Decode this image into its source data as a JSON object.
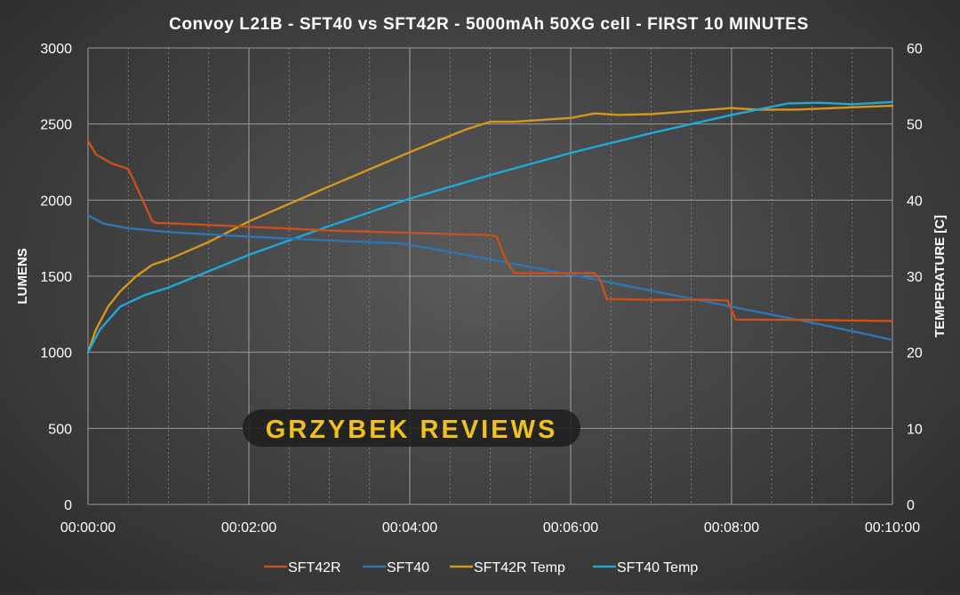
{
  "chart_data": {
    "type": "line",
    "title": "Convoy L21B - SFT40 vs SFT42R - 5000mAh 50XG cell - FIRST 10 MINUTES",
    "watermark": "GRZYBEK REVIEWS",
    "xlabel": "",
    "ylabel": "LUMENS",
    "y2label": "TEMPERATURE [C]",
    "x_unit": "minutes",
    "xlim": [
      0,
      10
    ],
    "ylim": [
      0,
      3000
    ],
    "y2lim": [
      0,
      60
    ],
    "x_ticks": [
      0,
      2,
      4,
      6,
      8,
      10
    ],
    "x_tick_labels": [
      "00:00:00",
      "00:02:00",
      "00:04:00",
      "00:06:00",
      "00:08:00",
      "00:10:00"
    ],
    "y_ticks": [
      0,
      500,
      1000,
      1500,
      2000,
      2500,
      3000
    ],
    "y2_ticks": [
      0,
      10,
      20,
      30,
      40,
      50,
      60
    ],
    "x_minor_ticks": [
      0.5,
      1,
      1.5,
      2.5,
      3,
      3.5,
      4.5,
      5,
      5.5,
      6.5,
      7,
      7.5,
      8.5,
      9,
      9.5
    ],
    "grid": true,
    "legend_position": "bottom",
    "series": [
      {
        "name": "SFT42R",
        "axis": "left",
        "color": "#c8511d",
        "points": [
          [
            0,
            2390
          ],
          [
            0.1,
            2300
          ],
          [
            0.3,
            2240
          ],
          [
            0.5,
            2205
          ],
          [
            0.55,
            2150
          ],
          [
            0.8,
            1860
          ],
          [
            0.85,
            1850
          ],
          [
            1.0,
            1848
          ],
          [
            2.0,
            1825
          ],
          [
            3.0,
            1800
          ],
          [
            4.0,
            1785
          ],
          [
            4.6,
            1775
          ],
          [
            5.0,
            1770
          ],
          [
            5.08,
            1760
          ],
          [
            5.2,
            1600
          ],
          [
            5.3,
            1520
          ],
          [
            6.0,
            1520
          ],
          [
            6.3,
            1520
          ],
          [
            6.37,
            1470
          ],
          [
            6.45,
            1350
          ],
          [
            7.0,
            1345
          ],
          [
            7.7,
            1345
          ],
          [
            7.95,
            1340
          ],
          [
            8.05,
            1215
          ],
          [
            9.0,
            1212
          ],
          [
            10.0,
            1205
          ]
        ]
      },
      {
        "name": "SFT40",
        "axis": "left",
        "color": "#2e75b6",
        "points": [
          [
            0,
            1900
          ],
          [
            0.2,
            1845
          ],
          [
            0.5,
            1815
          ],
          [
            1,
            1790
          ],
          [
            2,
            1760
          ],
          [
            3,
            1735
          ],
          [
            3.9,
            1715
          ],
          [
            4.5,
            1660
          ],
          [
            5,
            1610
          ],
          [
            6,
            1510
          ],
          [
            7,
            1405
          ],
          [
            8,
            1300
          ],
          [
            9,
            1195
          ],
          [
            9.8,
            1105
          ],
          [
            10,
            1080
          ]
        ]
      },
      {
        "name": "SFT42R Temp",
        "axis": "right",
        "color": "#d4961e",
        "points": [
          [
            0,
            20
          ],
          [
            0.1,
            23
          ],
          [
            0.25,
            26
          ],
          [
            0.4,
            28
          ],
          [
            0.6,
            30
          ],
          [
            0.8,
            31.5
          ],
          [
            1,
            32.2
          ],
          [
            1.5,
            34.5
          ],
          [
            2,
            37.2
          ],
          [
            3,
            41.8
          ],
          [
            4,
            46.3
          ],
          [
            4.7,
            49.3
          ],
          [
            5,
            50.3
          ],
          [
            5.3,
            50.3
          ],
          [
            6,
            50.8
          ],
          [
            6.3,
            51.4
          ],
          [
            6.6,
            51.2
          ],
          [
            7,
            51.3
          ],
          [
            7.5,
            51.7
          ],
          [
            8,
            52.1
          ],
          [
            8.3,
            51.9
          ],
          [
            8.8,
            51.9
          ],
          [
            9.5,
            52.2
          ],
          [
            10,
            52.4
          ]
        ]
      },
      {
        "name": "SFT40 Temp",
        "axis": "right",
        "color": "#1fa8d8",
        "points": [
          [
            0,
            20
          ],
          [
            0.15,
            23
          ],
          [
            0.4,
            26
          ],
          [
            0.7,
            27.5
          ],
          [
            1,
            28.5
          ],
          [
            2,
            32.8
          ],
          [
            3,
            36.6
          ],
          [
            4,
            40.2
          ],
          [
            5,
            43.3
          ],
          [
            6,
            46.2
          ],
          [
            7,
            48.8
          ],
          [
            8,
            51.2
          ],
          [
            8.7,
            52.7
          ],
          [
            9.1,
            52.8
          ],
          [
            9.5,
            52.6
          ],
          [
            10,
            52.9
          ]
        ]
      }
    ]
  }
}
